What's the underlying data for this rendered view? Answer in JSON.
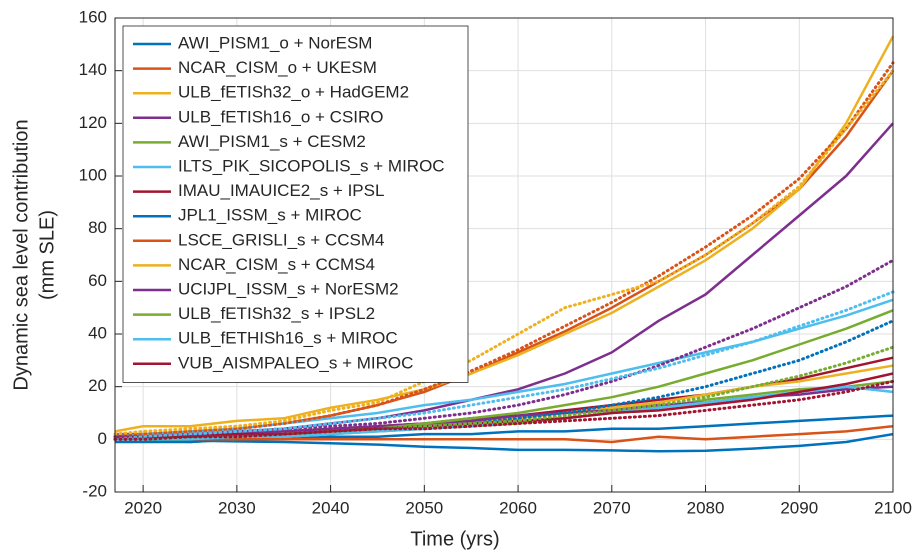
{
  "chart_data": {
    "type": "line",
    "xlabel": "Time (yrs)",
    "ylabel": [
      "Dynamic sea level contribution",
      "(mm SLE)"
    ],
    "x": [
      2017,
      2020,
      2025,
      2030,
      2035,
      2040,
      2045,
      2050,
      2055,
      2060,
      2065,
      2070,
      2075,
      2080,
      2085,
      2090,
      2095,
      2100
    ],
    "xlim": [
      2017,
      2100
    ],
    "xticks": [
      2020,
      2030,
      2040,
      2050,
      2060,
      2070,
      2080,
      2090,
      2100
    ],
    "ylim": [
      -20,
      160
    ],
    "yticks": [
      -20,
      0,
      20,
      40,
      60,
      80,
      100,
      120,
      140,
      160
    ],
    "grid": true,
    "legend": "top-left",
    "series": [
      {
        "name": "AWI_PISM1_o + NorESM",
        "color": "#0072BD",
        "values": [
          0,
          0,
          -0.5,
          -0.8,
          -1,
          -1.5,
          -2,
          -2.8,
          -3.3,
          -4,
          -4,
          -4.2,
          -4.5,
          -4.3,
          -3.5,
          -2.5,
          -1,
          2
        ]
      },
      {
        "name": "NCAR_CISM_o + UKESM",
        "color": "#D95319",
        "values": [
          1,
          2,
          3,
          4,
          6,
          9,
          13,
          18,
          25,
          33,
          41,
          50,
          60,
          70,
          82,
          95,
          115,
          140
        ]
      },
      {
        "name": "ULB_fETISh32_o + HadGEM2",
        "color": "#EDB120",
        "values": [
          3,
          5,
          5,
          7,
          8,
          12,
          15,
          19,
          25,
          32,
          40,
          48,
          58,
          68,
          80,
          95,
          120,
          153
        ]
      },
      {
        "name": "ULB_fETISh16_o + CSIRO",
        "color": "#7E2F8E",
        "values": [
          2,
          2,
          2,
          3,
          4,
          6,
          8,
          11,
          15,
          19,
          25,
          33,
          45,
          55,
          70,
          85,
          100,
          120
        ]
      },
      {
        "name": "AWI_PISM1_s + CESM2",
        "color": "#77AC30",
        "values": [
          0,
          0,
          -1,
          0,
          1,
          2,
          3,
          4,
          5,
          6,
          8,
          10,
          12,
          15,
          17,
          19,
          20,
          22
        ]
      },
      {
        "name": "ILTS_PIK_SICOPOLIS_s + MIROC",
        "color": "#4DBEEE",
        "values": [
          1,
          2,
          3,
          4,
          6,
          8,
          10,
          13,
          15,
          18,
          21,
          25,
          29,
          33,
          37,
          42,
          47,
          53
        ]
      },
      {
        "name": "IMAU_IMAUICE2_s + IPSL",
        "color": "#A2142F",
        "values": [
          1,
          1,
          2,
          2,
          3,
          4,
          5,
          6,
          8,
          9,
          11,
          13,
          15,
          17,
          20,
          23,
          27,
          31
        ]
      },
      {
        "name": "JPL1_ISSM_s + MIROC",
        "color": "#0072BD",
        "values": [
          -1,
          -1,
          -1,
          0,
          0,
          1,
          1,
          2,
          2,
          3,
          3,
          4,
          4,
          5,
          6,
          7,
          8,
          9
        ]
      },
      {
        "name": "LSCE_GRISLI_s + CCSM4",
        "color": "#D95319",
        "values": [
          0,
          0,
          0,
          0,
          0,
          0,
          0,
          0,
          0,
          0,
          0,
          -1,
          1,
          0,
          1,
          2,
          3,
          5
        ]
      },
      {
        "name": "NCAR_CISM_s + CCMS4",
        "color": "#EDB120",
        "values": [
          1,
          1,
          2,
          2,
          3,
          4,
          5,
          6,
          7,
          8,
          10,
          12,
          14,
          17,
          20,
          22,
          25,
          28
        ]
      },
      {
        "name": "UCIJPL_ISSM_s + NorESM2",
        "color": "#7E2F8E",
        "values": [
          1,
          1,
          2,
          2,
          3,
          4,
          5,
          6,
          7,
          9,
          10,
          11,
          13,
          14,
          16,
          17,
          19,
          20
        ]
      },
      {
        "name": "ULB_fETISh32_s + IPSL2",
        "color": "#77AC30",
        "values": [
          0,
          0,
          1,
          1,
          2,
          3,
          4,
          6,
          8,
          10,
          13,
          16,
          20,
          25,
          30,
          36,
          42,
          49
        ]
      },
      {
        "name": "ULB_fETHISh16_s + MIROC",
        "color": "#4DBEEE",
        "values": [
          0,
          0,
          0,
          1,
          1,
          2,
          3,
          4,
          5,
          7,
          8,
          10,
          12,
          14,
          16,
          18,
          20,
          18
        ]
      },
      {
        "name": "VUB_AISMPALEO_s + MIROC",
        "color": "#A2142F",
        "values": [
          1,
          1,
          1,
          2,
          2,
          3,
          4,
          5,
          6,
          7,
          8,
          10,
          11,
          13,
          15,
          18,
          21,
          25
        ]
      },
      {
        "color": "#D95319",
        "dash": "dotted",
        "values": [
          1,
          2,
          3,
          4,
          6,
          9,
          13,
          19,
          26,
          34,
          43,
          52,
          62,
          73,
          85,
          99,
          118,
          143
        ]
      },
      {
        "color": "#EDB120",
        "dash": "dotted",
        "values": [
          2,
          3,
          4,
          5,
          7,
          11,
          14,
          22,
          30,
          40,
          50,
          55,
          60,
          70,
          82,
          96,
          118,
          140
        ]
      },
      {
        "color": "#7E2F8E",
        "dash": "dotted",
        "values": [
          1,
          1,
          2,
          3,
          4,
          5,
          6,
          8,
          10,
          13,
          17,
          22,
          28,
          35,
          42,
          50,
          58,
          68
        ]
      },
      {
        "color": "#4DBEEE",
        "dash": "dotted",
        "values": [
          0,
          1,
          2,
          3,
          4,
          6,
          8,
          10,
          13,
          16,
          19,
          23,
          27,
          32,
          37,
          43,
          49,
          56
        ]
      },
      {
        "color": "#0072BD",
        "dash": "dotted",
        "values": [
          0,
          0,
          1,
          1,
          2,
          3,
          4,
          5,
          6,
          8,
          10,
          13,
          16,
          20,
          25,
          30,
          37,
          45
        ]
      },
      {
        "color": "#77AC30",
        "dash": "dotted",
        "values": [
          0,
          0,
          1,
          1,
          2,
          3,
          4,
          5,
          6,
          7,
          9,
          11,
          13,
          16,
          20,
          24,
          29,
          35
        ]
      },
      {
        "color": "#A2142F",
        "dash": "dotted",
        "values": [
          0,
          0,
          1,
          1,
          2,
          3,
          4,
          4,
          5,
          6,
          7,
          8,
          9,
          11,
          13,
          15,
          18,
          22
        ]
      }
    ]
  }
}
